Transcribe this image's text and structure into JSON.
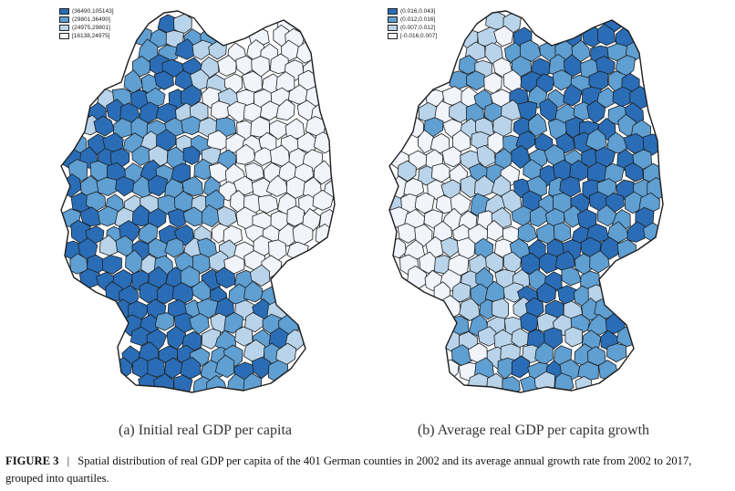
{
  "palette": [
    "#f1f4fb",
    "#b9d4ea",
    "#5f9fd2",
    "#2a6db6"
  ],
  "border_color": "#1e1e1e",
  "panel_a": {
    "subcaption": "(a) Initial real GDP per capita",
    "legend": [
      {
        "label": "(36490,105143]",
        "quartile": 3
      },
      {
        "label": "(29801,36490]",
        "quartile": 2
      },
      {
        "label": "(24975,29801]",
        "quartile": 1
      },
      {
        "label": "[16138,24975]",
        "quartile": 0
      }
    ]
  },
  "panel_b": {
    "subcaption": "(b) Average real GDP per capita growth",
    "legend": [
      {
        "label": "(0.016,0.043]",
        "quartile": 3
      },
      {
        "label": "(0.012,0.016]",
        "quartile": 2
      },
      {
        "label": "(0.007,0.012]",
        "quartile": 1
      },
      {
        "label": "[-0.016,0.007]",
        "quartile": 0
      }
    ]
  },
  "figure_caption": {
    "label": "FIGURE 3",
    "separator": "|",
    "text": "Spatial distribution of real GDP per capita of the 401 German counties in 2002 and its average annual growth rate from 2002 to 2017, grouped into quartiles."
  }
}
